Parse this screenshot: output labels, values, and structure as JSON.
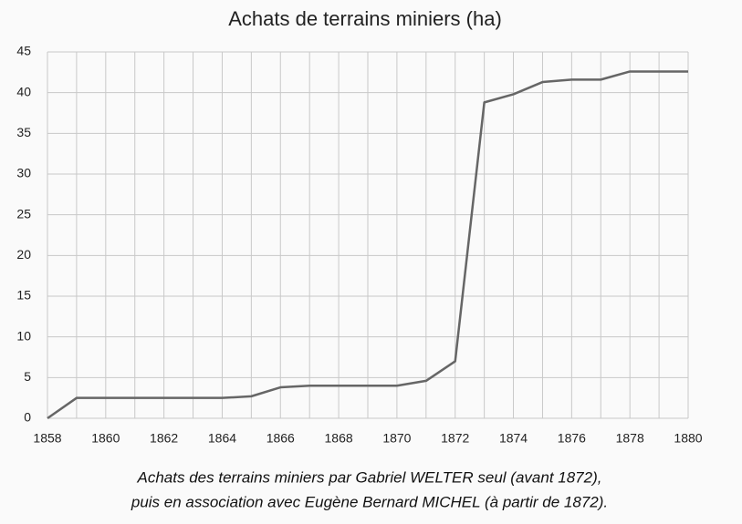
{
  "chart_data": {
    "type": "line",
    "title": "Achats de terrains miniers (ha)",
    "x": [
      1858,
      1859,
      1860,
      1861,
      1862,
      1863,
      1864,
      1865,
      1866,
      1867,
      1868,
      1869,
      1870,
      1871,
      1872,
      1873,
      1874,
      1875,
      1876,
      1877,
      1878,
      1879,
      1880
    ],
    "series": [
      {
        "color": "#666666",
        "values": [
          0,
          2.5,
          2.5,
          2.5,
          2.5,
          2.5,
          2.5,
          2.7,
          3.8,
          4,
          4,
          4,
          4,
          4.6,
          7,
          38.8,
          39.8,
          41.3,
          41.6,
          41.6,
          42.6,
          42.6,
          42.6
        ]
      }
    ],
    "xlim": [
      1858,
      1880
    ],
    "xticks": [
      1858,
      1860,
      1862,
      1864,
      1866,
      1868,
      1870,
      1872,
      1874,
      1876,
      1878,
      1880
    ],
    "ylim": [
      0,
      45
    ],
    "yticks": [
      0,
      5,
      10,
      15,
      20,
      25,
      30,
      35,
      40,
      45
    ],
    "grid": true
  },
  "caption": [
    "Achats des terrains miniers par Gabriel WELTER seul (avant 1872),",
    "puis en association avec Eugène Bernard MICHEL (à partir de 1872)."
  ]
}
